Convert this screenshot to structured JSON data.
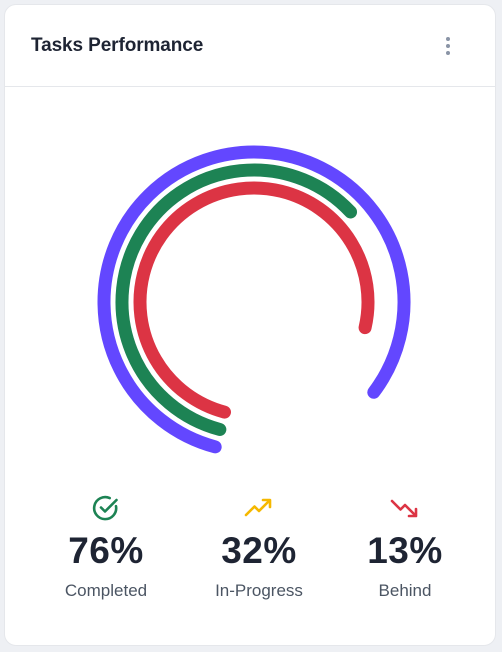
{
  "card": {
    "title": "Tasks Performance",
    "menu_icon": "more-vertical-icon"
  },
  "chart_data": {
    "type": "radial-bar",
    "series": [
      {
        "name": "Completed",
        "value": 76,
        "color": "#6347ff"
      },
      {
        "name": "In-Progress",
        "value": 32,
        "color": "#1d8354"
      },
      {
        "name": "Behind",
        "value": 13,
        "color": "#dc3444"
      }
    ]
  },
  "stats": [
    {
      "icon": "check-circle-icon",
      "value": "76%",
      "label": "Completed",
      "color": "#1d8354"
    },
    {
      "icon": "trending-up-icon",
      "value": "32%",
      "label": "In-Progress",
      "color": "#f5b800"
    },
    {
      "icon": "trending-down-icon",
      "value": "13%",
      "label": "Behind",
      "color": "#dc3444"
    }
  ]
}
